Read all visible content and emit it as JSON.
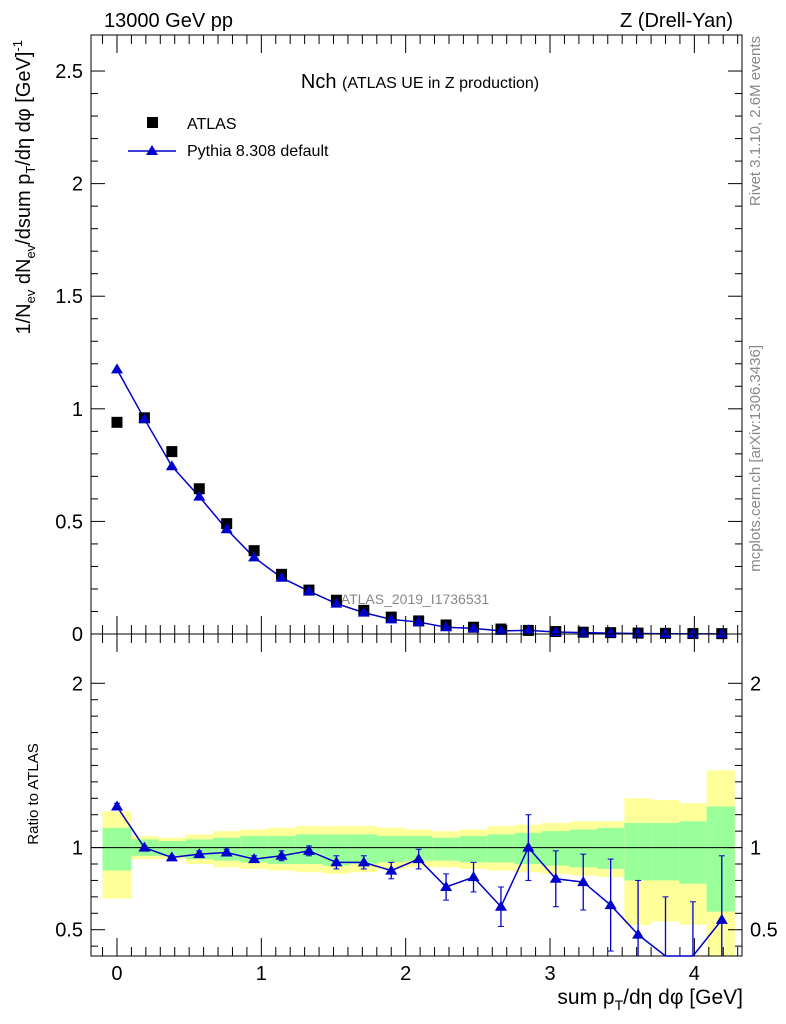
{
  "header": {
    "left": "13000 GeV pp",
    "right": "Z (Drell-Yan)",
    "side_top": "Rivet 3.1.10,  2.6M events",
    "side_bottom": "mcplots.cern.ch [arXiv:1306.3436]",
    "watermark": "ATLAS_2019_I1736531"
  },
  "colors": {
    "pythia": "#0000cc",
    "band_inner": "#99ff99",
    "band_outer": "#ffff99",
    "data": "#000000"
  },
  "chart_data": [
    {
      "type": "scatter",
      "title": "Nch",
      "subtitle": "(ATLAS UE in Z production)",
      "ylabel": "1/N_ev dN_ev/dsum p_T/dη dφ [GeV]^-1",
      "xlim": [
        -0.18,
        4.33
      ],
      "ylim": [
        0,
        2.66
      ],
      "yticks": [
        0,
        0.5,
        1,
        1.5,
        2,
        2.5
      ],
      "ytick_labels": [
        "0",
        "0.5",
        "1",
        "1.5",
        "2",
        "2.5"
      ],
      "legend": [
        {
          "name": "ATLAS",
          "marker": "square"
        },
        {
          "name": "Pythia 8.308 default",
          "marker": "triangle"
        }
      ],
      "x": [
        0.0,
        0.19,
        0.38,
        0.57,
        0.76,
        0.95,
        1.14,
        1.33,
        1.52,
        1.71,
        1.9,
        2.09,
        2.28,
        2.47,
        2.66,
        2.85,
        3.04,
        3.23,
        3.42,
        3.61,
        3.8,
        3.99,
        4.19
      ],
      "series": [
        {
          "name": "ATLAS",
          "values": [
            0.94,
            0.96,
            0.81,
            0.645,
            0.49,
            0.37,
            0.265,
            0.195,
            0.15,
            0.105,
            0.075,
            0.058,
            0.04,
            0.03,
            0.022,
            0.016,
            0.011,
            0.008,
            0.006,
            0.004,
            0.003,
            0.002,
            0.0015
          ]
        },
        {
          "name": "Pythia 8.308 default",
          "values": [
            1.175,
            0.955,
            0.745,
            0.61,
            0.465,
            0.34,
            0.25,
            0.19,
            0.135,
            0.095,
            0.065,
            0.053,
            0.03,
            0.025,
            0.014,
            0.016,
            0.009,
            0.006,
            0.004,
            0.002,
            0.001,
            0.0007,
            0.0008
          ]
        }
      ]
    },
    {
      "type": "line",
      "ylabel": "Ratio to ATLAS",
      "xlabel": "sum p_T/dη dφ [GeV]",
      "xlim": [
        -0.18,
        4.33
      ],
      "ylim": [
        0.34,
        2.3
      ],
      "yticks": [
        0.5,
        1,
        2
      ],
      "ytick_labels": [
        "0.5",
        "1",
        "2"
      ],
      "xticks": [
        0,
        1,
        2,
        3,
        4
      ],
      "xtick_labels": [
        "0",
        "1",
        "2",
        "3",
        "4"
      ],
      "x": [
        0.0,
        0.19,
        0.38,
        0.57,
        0.76,
        0.95,
        1.14,
        1.33,
        1.52,
        1.71,
        1.9,
        2.09,
        2.28,
        2.47,
        2.66,
        2.85,
        3.04,
        3.23,
        3.42,
        3.61,
        3.8,
        3.99,
        4.19
      ],
      "band_edges": [
        -0.1,
        0.1,
        0.285,
        0.475,
        0.665,
        0.855,
        1.045,
        1.235,
        1.425,
        1.615,
        1.805,
        1.995,
        2.185,
        2.375,
        2.565,
        2.755,
        2.945,
        3.135,
        3.325,
        3.515,
        3.705,
        3.895,
        4.085,
        4.28
      ],
      "band_inner": [
        [
          0.86,
          1.12
        ],
        [
          0.95,
          1.05
        ],
        [
          0.95,
          1.04
        ],
        [
          0.93,
          1.05
        ],
        [
          0.92,
          1.06
        ],
        [
          0.91,
          1.07
        ],
        [
          0.9,
          1.07
        ],
        [
          0.9,
          1.08
        ],
        [
          0.89,
          1.08
        ],
        [
          0.9,
          1.08
        ],
        [
          0.91,
          1.07
        ],
        [
          0.92,
          1.07
        ],
        [
          0.92,
          1.06
        ],
        [
          0.91,
          1.07
        ],
        [
          0.91,
          1.08
        ],
        [
          0.9,
          1.09
        ],
        [
          0.89,
          1.1
        ],
        [
          0.88,
          1.11
        ],
        [
          0.87,
          1.12
        ],
        [
          0.8,
          1.15
        ],
        [
          0.8,
          1.15
        ],
        [
          0.78,
          1.16
        ],
        [
          0.61,
          1.25
        ]
      ],
      "band_outer": [
        [
          0.69,
          1.22
        ],
        [
          0.93,
          1.07
        ],
        [
          0.93,
          1.06
        ],
        [
          0.9,
          1.08
        ],
        [
          0.88,
          1.1
        ],
        [
          0.87,
          1.11
        ],
        [
          0.86,
          1.12
        ],
        [
          0.85,
          1.13
        ],
        [
          0.84,
          1.13
        ],
        [
          0.85,
          1.13
        ],
        [
          0.87,
          1.12
        ],
        [
          0.88,
          1.11
        ],
        [
          0.88,
          1.1
        ],
        [
          0.87,
          1.11
        ],
        [
          0.86,
          1.13
        ],
        [
          0.85,
          1.14
        ],
        [
          0.84,
          1.15
        ],
        [
          0.83,
          1.16
        ],
        [
          0.82,
          1.16
        ],
        [
          0.53,
          1.3
        ],
        [
          0.55,
          1.29
        ],
        [
          0.53,
          1.27
        ],
        [
          0.3,
          1.47
        ]
      ],
      "series": [
        {
          "name": "Pythia 8.308 default",
          "values": [
            1.25,
            1.0,
            0.94,
            0.96,
            0.97,
            0.93,
            0.95,
            0.98,
            0.91,
            0.91,
            0.86,
            0.93,
            0.76,
            0.82,
            0.64,
            1.0,
            0.81,
            0.79,
            0.65,
            0.47,
            0.3,
            0.33,
            0.56
          ],
          "errors": [
            0.02,
            0.01,
            0.01,
            0.02,
            0.02,
            0.02,
            0.03,
            0.03,
            0.04,
            0.04,
            0.05,
            0.06,
            0.08,
            0.09,
            0.12,
            0.2,
            0.17,
            0.17,
            0.28,
            0.33,
            0.4,
            0.34,
            0.39
          ]
        }
      ],
      "reference_line": 1
    }
  ]
}
